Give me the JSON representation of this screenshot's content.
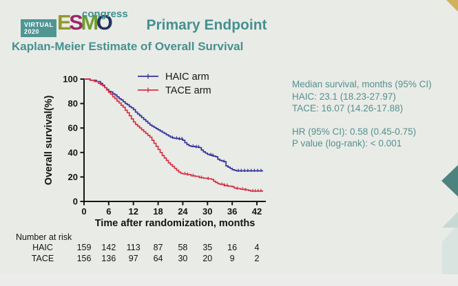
{
  "header": {
    "logo": {
      "virtual_label": "VIRTUAL",
      "year": "2020",
      "esmo_letters": [
        "E",
        "S",
        "M",
        "O"
      ],
      "esmo_letter_colors": [
        "#93992c",
        "#a02569",
        "#6f9d2f",
        "#24335f"
      ],
      "congress": "congress"
    },
    "title": "Primary Endpoint",
    "subtitle": "Kaplan-Meier Estimate of Overall Survival"
  },
  "stats": {
    "median_title": "Median survival, months (95% CI)",
    "haic_line": "HAIC: 23.1 (18.23-27.97)",
    "tace_line": "TACE: 16.07 (14.26-17.88)",
    "hr_line": "HR (95% CI): 0.58 (0.45-0.75)",
    "p_line": "P value (log-rank): < 0.001"
  },
  "colors": {
    "background": "#e9ebe7",
    "accent_teal": "#459190",
    "stats_teal": "#53908d",
    "haic_blue": "#32329b",
    "tace_red": "#d52f42",
    "gold_corner": "#d2b15c",
    "diamond_teal": "#4d837e",
    "pale_teal_triangle": "#c7d9d3",
    "pale_teal_rect": "#d9e4e0",
    "logo_box_teal": "#4f9693"
  },
  "chart_data": {
    "type": "line",
    "subtype": "kaplan-meier-step",
    "title": "",
    "xlabel": "Time after randomization, months",
    "ylabel": "Overall survival(%)",
    "xlim": [
      0,
      44
    ],
    "ylim": [
      0,
      100
    ],
    "xticks": [
      0,
      6,
      12,
      18,
      24,
      30,
      36,
      42
    ],
    "yticks": [
      0,
      20,
      40,
      60,
      80,
      100
    ],
    "grid": false,
    "legend_position": "top-center-inside",
    "series": [
      {
        "name": "HAIC arm",
        "color": "#32329b",
        "step": [
          [
            0,
            100
          ],
          [
            1.5,
            99
          ],
          [
            3,
            98
          ],
          [
            4,
            96.5
          ],
          [
            4.5,
            95
          ],
          [
            5,
            93
          ],
          [
            5.5,
            91.5
          ],
          [
            6,
            90
          ],
          [
            6.5,
            89.5
          ],
          [
            7,
            88
          ],
          [
            7.5,
            87
          ],
          [
            8,
            85.5
          ],
          [
            8.5,
            84
          ],
          [
            9,
            83
          ],
          [
            9.5,
            81.5
          ],
          [
            10,
            80
          ],
          [
            10.5,
            79
          ],
          [
            11,
            77.5
          ],
          [
            11.5,
            76.5
          ],
          [
            12,
            75
          ],
          [
            12.5,
            73
          ],
          [
            13,
            71.5
          ],
          [
            13.5,
            70
          ],
          [
            14,
            68.5
          ],
          [
            14.5,
            67
          ],
          [
            15,
            65.5
          ],
          [
            15.5,
            64
          ],
          [
            16,
            62.5
          ],
          [
            16.5,
            61.5
          ],
          [
            17,
            60.5
          ],
          [
            17.5,
            59.5
          ],
          [
            18,
            58.5
          ],
          [
            18.5,
            57.5
          ],
          [
            19,
            56.5
          ],
          [
            19.5,
            55.5
          ],
          [
            20,
            54.5
          ],
          [
            20.5,
            53.5
          ],
          [
            21,
            52.5
          ],
          [
            21.5,
            52
          ],
          [
            22,
            51.5
          ],
          [
            23,
            51
          ],
          [
            24,
            50
          ],
          [
            24.5,
            48
          ],
          [
            25,
            46.5
          ],
          [
            25.5,
            45.5
          ],
          [
            26,
            45
          ],
          [
            27,
            44.5
          ],
          [
            28,
            44
          ],
          [
            28.5,
            42
          ],
          [
            29,
            40.5
          ],
          [
            29.5,
            39.5
          ],
          [
            30,
            38.5
          ],
          [
            30.5,
            38
          ],
          [
            31,
            37.5
          ],
          [
            31.5,
            37
          ],
          [
            32,
            36.5
          ],
          [
            32.5,
            34.5
          ],
          [
            33,
            33.5
          ],
          [
            33.5,
            33
          ],
          [
            34,
            32.5
          ],
          [
            34.5,
            29
          ],
          [
            35,
            28
          ],
          [
            35.5,
            27
          ],
          [
            36,
            26
          ],
          [
            36.5,
            25.5
          ],
          [
            37,
            25
          ],
          [
            43.5,
            25
          ]
        ],
        "censor_months": [
          21.5,
          22.5,
          23.2,
          23.8,
          26.5,
          27.3,
          27.8,
          30.8,
          31.3,
          34,
          37.5,
          38.2,
          39,
          39.8,
          40.6,
          41.4,
          42.2,
          43
        ]
      },
      {
        "name": "TACE arm",
        "color": "#d52f42",
        "step": [
          [
            0,
            100
          ],
          [
            1.5,
            99
          ],
          [
            2.5,
            98
          ],
          [
            3.5,
            96.5
          ],
          [
            4,
            95.5
          ],
          [
            4.5,
            94.5
          ],
          [
            5,
            93
          ],
          [
            5.5,
            91
          ],
          [
            6,
            89
          ],
          [
            6.5,
            87.5
          ],
          [
            7,
            85.5
          ],
          [
            7.5,
            84
          ],
          [
            8,
            82
          ],
          [
            8.5,
            80.5
          ],
          [
            9,
            78.5
          ],
          [
            9.5,
            77
          ],
          [
            10,
            74.5
          ],
          [
            10.5,
            72.5
          ],
          [
            11,
            70
          ],
          [
            11.5,
            67.5
          ],
          [
            12,
            65
          ],
          [
            12.5,
            63
          ],
          [
            13,
            61.5
          ],
          [
            13.5,
            60
          ],
          [
            14,
            58.5
          ],
          [
            14.5,
            57
          ],
          [
            15,
            55.5
          ],
          [
            15.5,
            54
          ],
          [
            16,
            52.5
          ],
          [
            16.5,
            50
          ],
          [
            17,
            47.5
          ],
          [
            17.5,
            45
          ],
          [
            18,
            42.5
          ],
          [
            18.5,
            40
          ],
          [
            19,
            37.5
          ],
          [
            19.5,
            35.5
          ],
          [
            20,
            33.5
          ],
          [
            20.5,
            31.5
          ],
          [
            21,
            30
          ],
          [
            21.5,
            28.5
          ],
          [
            22,
            27
          ],
          [
            22.5,
            25.5
          ],
          [
            23,
            24
          ],
          [
            23.5,
            23
          ],
          [
            24,
            22.5
          ],
          [
            25,
            22
          ],
          [
            26,
            21
          ],
          [
            27,
            20.5
          ],
          [
            28,
            19.5
          ],
          [
            29,
            19
          ],
          [
            30,
            18.5
          ],
          [
            31,
            18
          ],
          [
            31.5,
            16.5
          ],
          [
            32,
            15.5
          ],
          [
            32.5,
            14.5
          ],
          [
            33,
            14
          ],
          [
            34,
            13
          ],
          [
            35,
            12.5
          ],
          [
            36,
            12
          ],
          [
            36.5,
            11
          ],
          [
            37,
            10.5
          ],
          [
            38,
            10
          ],
          [
            39,
            9.5
          ],
          [
            40,
            9
          ],
          [
            40.5,
            8.5
          ],
          [
            42,
            8.5
          ],
          [
            43.5,
            8.5
          ]
        ],
        "censor_months": [
          24.5,
          25.2,
          26.5,
          28.5,
          30.2,
          33.5,
          34.2,
          34.8,
          37.3,
          38.5,
          39.3,
          41,
          41.6,
          42.3,
          43
        ]
      }
    ],
    "number_at_risk": {
      "label": "Number at risk",
      "rows": [
        {
          "name": "HAIC",
          "values": [
            159,
            142,
            113,
            87,
            58,
            35,
            16,
            4
          ]
        },
        {
          "name": "TACE",
          "values": [
            156,
            136,
            97,
            64,
            30,
            20,
            9,
            2
          ]
        }
      ]
    }
  }
}
